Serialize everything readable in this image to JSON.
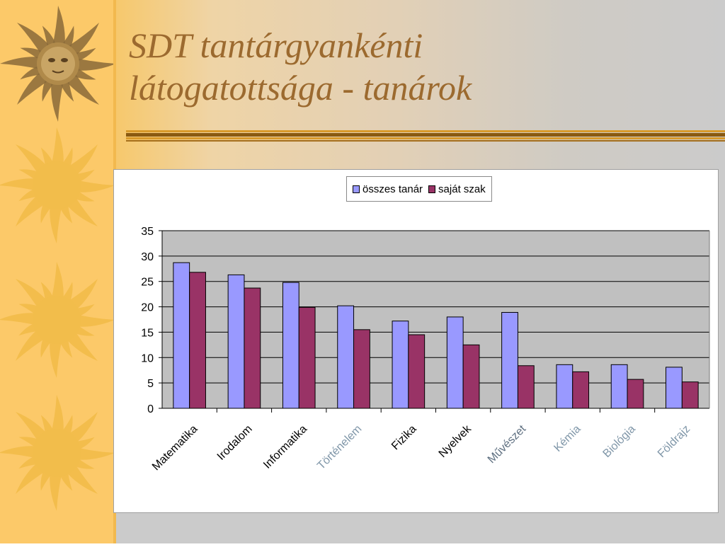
{
  "slide": {
    "title_lines": [
      "SDT tantárgyankénti",
      "látogatottsága - tanárok"
    ],
    "colors": {
      "sidebar": "#fcc969",
      "sun_gold": "#f2bd4b",
      "title": "#9c6a2f",
      "divider": "#c98a1a"
    }
  },
  "chart_data": {
    "type": "bar",
    "categories": [
      "Matematika",
      "Irodalom",
      "Informatika",
      "Történelem",
      "Fizika",
      "Nyelvek",
      "Művészet",
      "Kémia",
      "Biológia",
      "Földrajz"
    ],
    "category_colors": [
      "#000000",
      "#000000",
      "#000000",
      "#7f96a8",
      "#000000",
      "#000000",
      "#5e6f80",
      "#7f96a8",
      "#7f96a8",
      "#7f96a8"
    ],
    "series": [
      {
        "name": "összes tanár",
        "color": "#9999ff",
        "values": [
          28.7,
          26.3,
          24.8,
          20.2,
          17.2,
          18.0,
          18.9,
          8.6,
          8.6,
          8.1
        ]
      },
      {
        "name": "saját szak",
        "color": "#993366",
        "values": [
          26.8,
          23.7,
          19.9,
          15.5,
          14.5,
          12.5,
          8.4,
          7.2,
          5.7,
          5.2
        ]
      }
    ],
    "yticks": [
      0,
      5,
      10,
      15,
      20,
      25,
      30,
      35
    ],
    "ylim": [
      0,
      35
    ],
    "plot_background": "#c0c0c0",
    "grid": true,
    "legend_position": "top"
  }
}
